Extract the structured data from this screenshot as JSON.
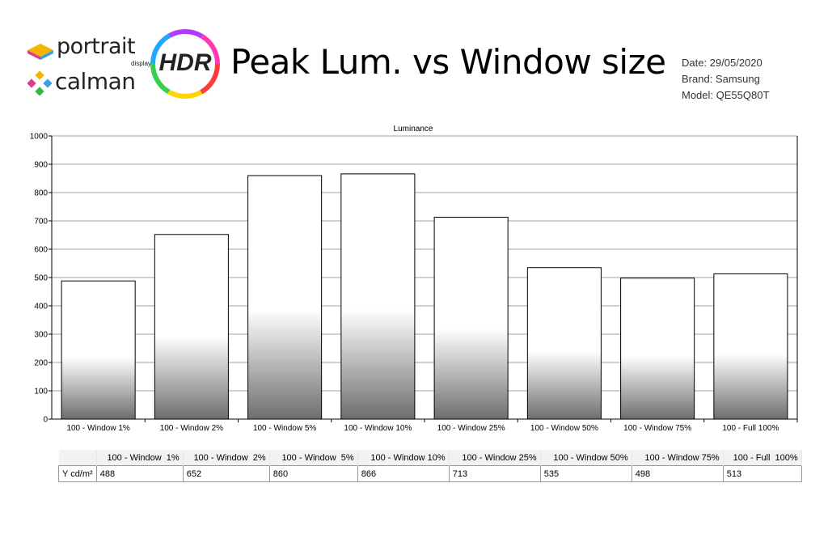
{
  "header": {
    "portrait_logo": {
      "word": "portrait",
      "sub": "displays"
    },
    "calman_logo": {
      "word": "calman"
    },
    "badge": "HDR",
    "title": "Peak Lum. vs Window size",
    "meta": {
      "date": "Date: 29/05/2020",
      "brand": "Brand: Samsung",
      "model": "Model: QE55Q80T"
    }
  },
  "colors": {
    "bar_top": "#ffffff",
    "bar_bottom": "#6e6e6e",
    "grid": "#a0a0a0",
    "hdr_ring": [
      "#ff3b3b",
      "#ffd400",
      "#35d14a",
      "#23a8ff",
      "#b13bff",
      "#ff3bb3"
    ]
  },
  "chart_data": {
    "type": "bar",
    "title": "Luminance",
    "categories": [
      "100 - Window  1%",
      "100 - Window  2%",
      "100 - Window  5%",
      "100 - Window 10%",
      "100 - Window 25%",
      "100 - Window 50%",
      "100 - Window 75%",
      "100 - Full  100%"
    ],
    "values": [
      488,
      652,
      860,
      866,
      713,
      535,
      498,
      513
    ],
    "ylim": [
      0,
      1000
    ],
    "yticks": [
      0,
      100,
      200,
      300,
      400,
      500,
      600,
      700,
      800,
      900,
      1000
    ],
    "grid": true
  },
  "table": {
    "row_label": "Y cd/m²",
    "headers": [
      "100 - Window  1%",
      "100 - Window  2%",
      "100 - Window  5%",
      "100 - Window 10%",
      "100 - Window 25%",
      "100 - Window 50%",
      "100 - Window 75%",
      "100 - Full  100%"
    ],
    "values": [
      "488",
      "652",
      "860",
      "866",
      "713",
      "535",
      "498",
      "513"
    ]
  }
}
